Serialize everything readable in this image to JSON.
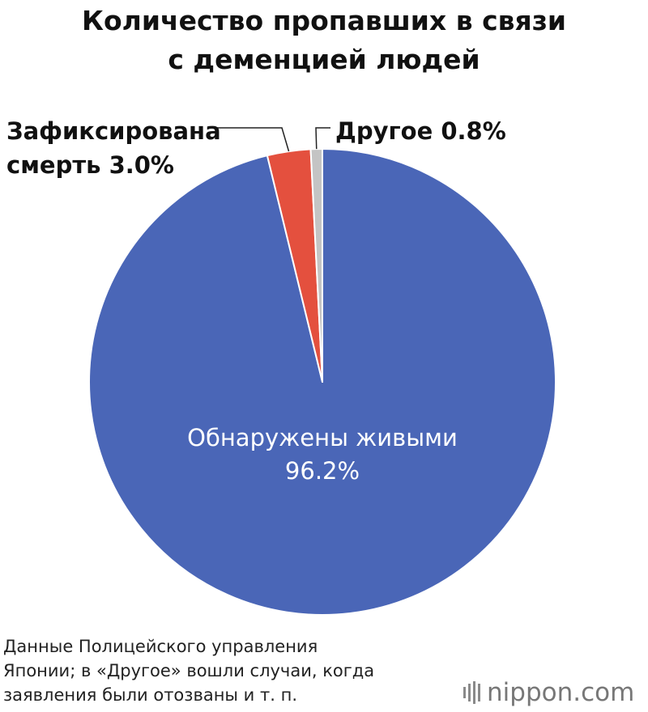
{
  "title": {
    "line1": "Количество пропавших в связи",
    "line2": "с деменцией людей"
  },
  "chart_data": {
    "type": "pie",
    "title": "Количество пропавших в связи с деменцией людей",
    "start_angle_deg": 0,
    "direction": "clockwise",
    "slices": [
      {
        "label": "Обнаружены живыми",
        "value": 96.2,
        "value_label": "96.2%",
        "color": "#4a66b7",
        "label_position": "inside"
      },
      {
        "label": "Зафиксирована смерть",
        "label_lines": [
          "Зафиксирована",
          "смерть  3.0%"
        ],
        "value": 3.0,
        "value_label": "3.0%",
        "color": "#e4503e",
        "label_position": "outside-left"
      },
      {
        "label": "Другое",
        "label_lines": [
          "Другое  0.8%"
        ],
        "value": 0.8,
        "value_label": "0.8%",
        "color": "#c4c4c4",
        "label_position": "outside-top"
      }
    ]
  },
  "note": {
    "line1": "Данные Полицейского управления",
    "line2": "Японии; в «Другое» вошли случаи, когда",
    "line3": "заявления были отозваны и т. п."
  },
  "logo": {
    "text": "nippon.com",
    "color": "#777777"
  }
}
